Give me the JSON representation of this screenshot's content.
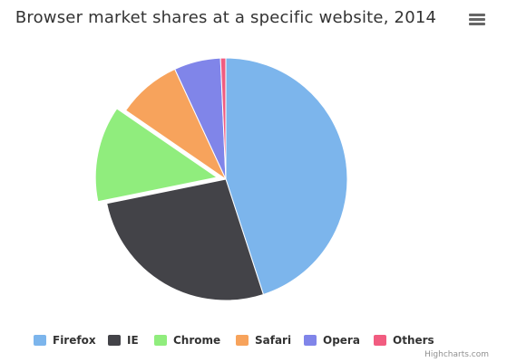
{
  "title": "Browser market shares at a specific website, 2014",
  "credits": "Highcharts.com",
  "menu": {
    "icon": "hamburger-menu-icon"
  },
  "chart_data": {
    "type": "pie",
    "title": "Browser market shares at a specific website, 2014",
    "legend_position": "bottom",
    "series": [
      {
        "name": "",
        "data": [
          {
            "name": "Firefox",
            "value": 45.0,
            "color": "#7cb5ec"
          },
          {
            "name": "IE",
            "value": 26.8,
            "color": "#434348"
          },
          {
            "name": "Chrome",
            "value": 12.8,
            "color": "#90ed7d",
            "sliced": true
          },
          {
            "name": "Safari",
            "value": 8.5,
            "color": "#f7a35c"
          },
          {
            "name": "Opera",
            "value": 6.2,
            "color": "#8085e9"
          },
          {
            "name": "Others",
            "value": 0.7,
            "color": "#f15c80"
          }
        ]
      }
    ]
  }
}
